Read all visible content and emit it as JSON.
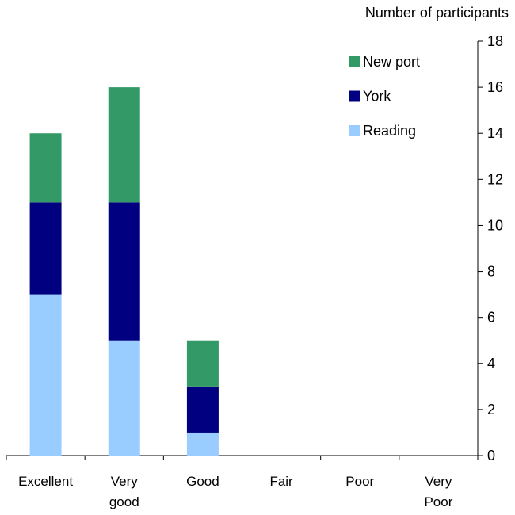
{
  "chart_data": {
    "type": "stacked_bar",
    "y_label": "Number of participants",
    "categories": [
      "Excellent",
      "Very\ngood",
      "Good",
      "Fair",
      "Poor",
      "Very\nPoor"
    ],
    "series": [
      {
        "name": "Reading",
        "color": "#99ccff",
        "values": [
          7,
          5,
          1,
          0,
          0,
          0
        ]
      },
      {
        "name": "York",
        "color": "#000080",
        "values": [
          4,
          6,
          2,
          0,
          0,
          0
        ]
      },
      {
        "name": "New port",
        "color": "#339966",
        "values": [
          3,
          5,
          2,
          0,
          0,
          0
        ]
      }
    ],
    "ylim": [
      0,
      18
    ],
    "yticks": [
      0,
      2,
      4,
      6,
      8,
      10,
      12,
      14,
      16,
      18
    ],
    "y_axis_side": "right",
    "legend": "top-right",
    "legend_order": "reversed"
  }
}
